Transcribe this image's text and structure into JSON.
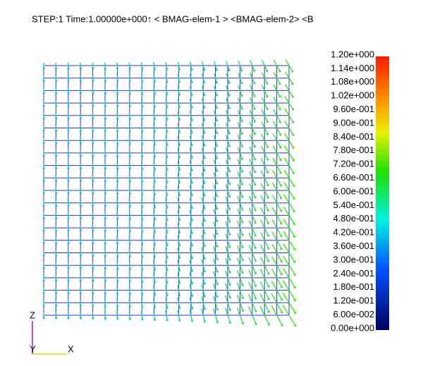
{
  "header": {
    "title": "STEP:1 Time:1.00000e+000↑ < BMAG-elem-1 > <BMAG-elem-2> <B"
  },
  "legend": {
    "labels": [
      "1.20e+000",
      "1.14e+000",
      "1.08e+000",
      "1.02e+000",
      "9.60e-001",
      "9.00e-001",
      "8.40e-001",
      "7.80e-001",
      "7.20e-001",
      "6.60e-001",
      "6.00e-001",
      "5.40e-001",
      "4.80e-001",
      "4.20e-001",
      "3.60e-001",
      "3.00e-001",
      "2.40e-001",
      "1.80e-001",
      "1.20e-001",
      "6.00e-002",
      "0.00e+000"
    ]
  },
  "axes": {
    "z": "Z",
    "y": "Y",
    "x": "X"
  }
}
